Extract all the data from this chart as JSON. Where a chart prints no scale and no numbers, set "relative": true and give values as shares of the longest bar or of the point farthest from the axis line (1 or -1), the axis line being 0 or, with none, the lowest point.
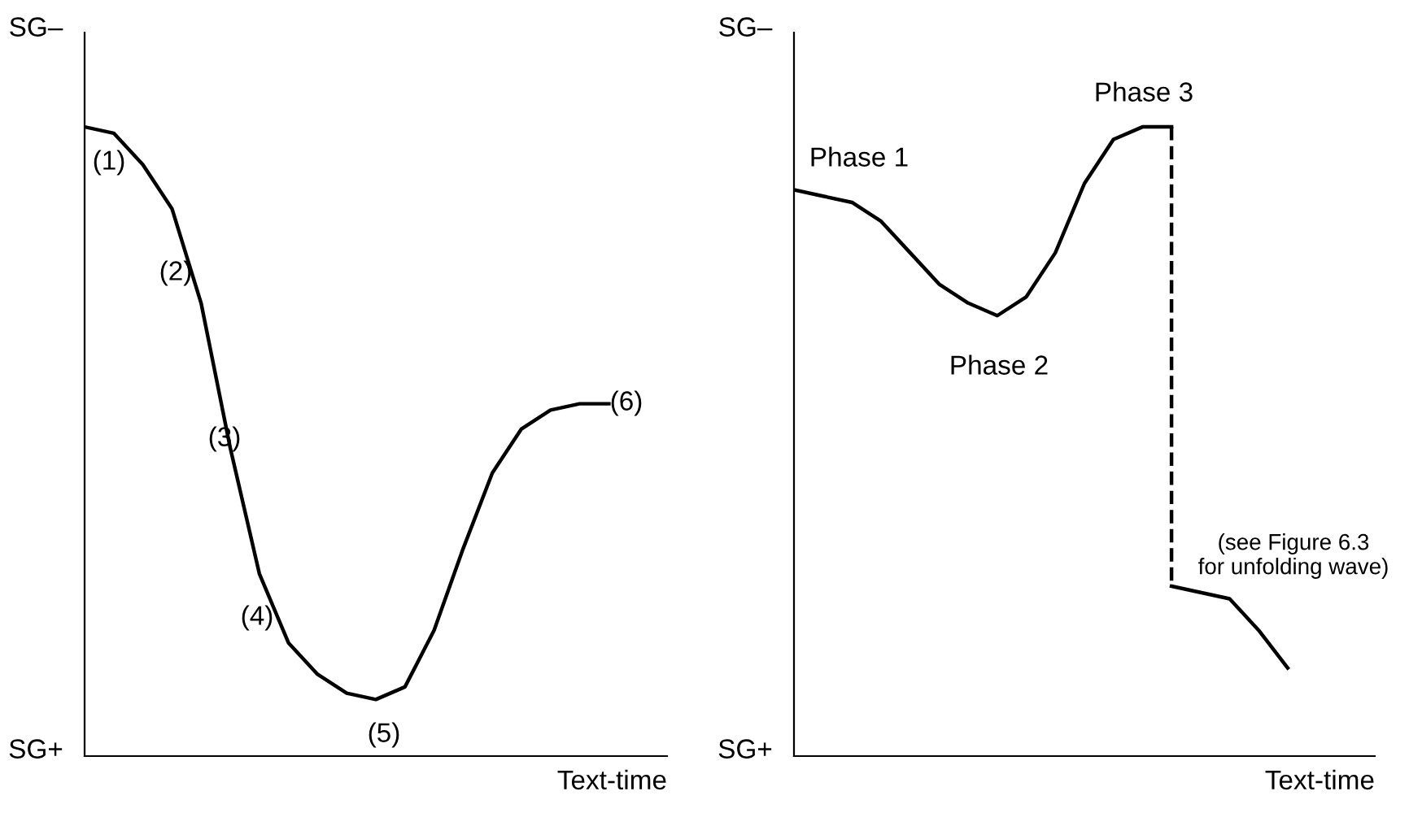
{
  "chart_data": [
    {
      "type": "line",
      "relative": true,
      "xlabel": "Text-time",
      "categories": [
        null,
        null,
        null,
        null,
        null,
        null,
        null,
        null,
        null,
        null,
        null,
        null,
        null,
        null,
        null,
        null,
        null,
        null,
        null,
        null,
        null
      ],
      "series": [
        {
          "color": "#000000",
          "values": [
            1,
            0.99,
            0.94,
            0.87,
            0.72,
            0.49,
            0.29,
            0.18,
            0.13,
            0.1,
            0.09,
            0.11,
            0.2,
            0.33,
            0.45,
            0.52,
            0.55,
            0.56,
            0.56,
            null,
            null
          ]
        }
      ],
      "annotations": [
        "SG–",
        "SG+",
        "(1)",
        "(2)",
        "(3)",
        "(4)",
        "(5)",
        "(6)"
      ]
    },
    {
      "type": "line",
      "relative": true,
      "xlabel": "Text-time",
      "categories": [
        null,
        null,
        null,
        null,
        null,
        null,
        null,
        null,
        null,
        null,
        null,
        null,
        null,
        null,
        null,
        null,
        null,
        null,
        null,
        null,
        null
      ],
      "series": [
        {
          "color": "#000000",
          "values": [
            0.9,
            0.89,
            0.88,
            0.85,
            0.8,
            0.75,
            0.72,
            0.7,
            0.73,
            0.8,
            0.91,
            0.98,
            1,
            1,
            null,
            null,
            null,
            null,
            null,
            null,
            null
          ]
        },
        {
          "color": "#000000",
          "values": [
            null,
            null,
            null,
            null,
            null,
            null,
            null,
            null,
            null,
            null,
            null,
            null,
            null,
            0.27,
            0.26,
            0.25,
            0.2,
            0.14,
            null,
            null,
            null
          ]
        }
      ],
      "annotations": [
        "SG–",
        "SG+",
        "Phase 1",
        "Phase 3",
        "Phase 2",
        "(see Figure 6.3\nfor unfolding wave)"
      ]
    }
  ]
}
